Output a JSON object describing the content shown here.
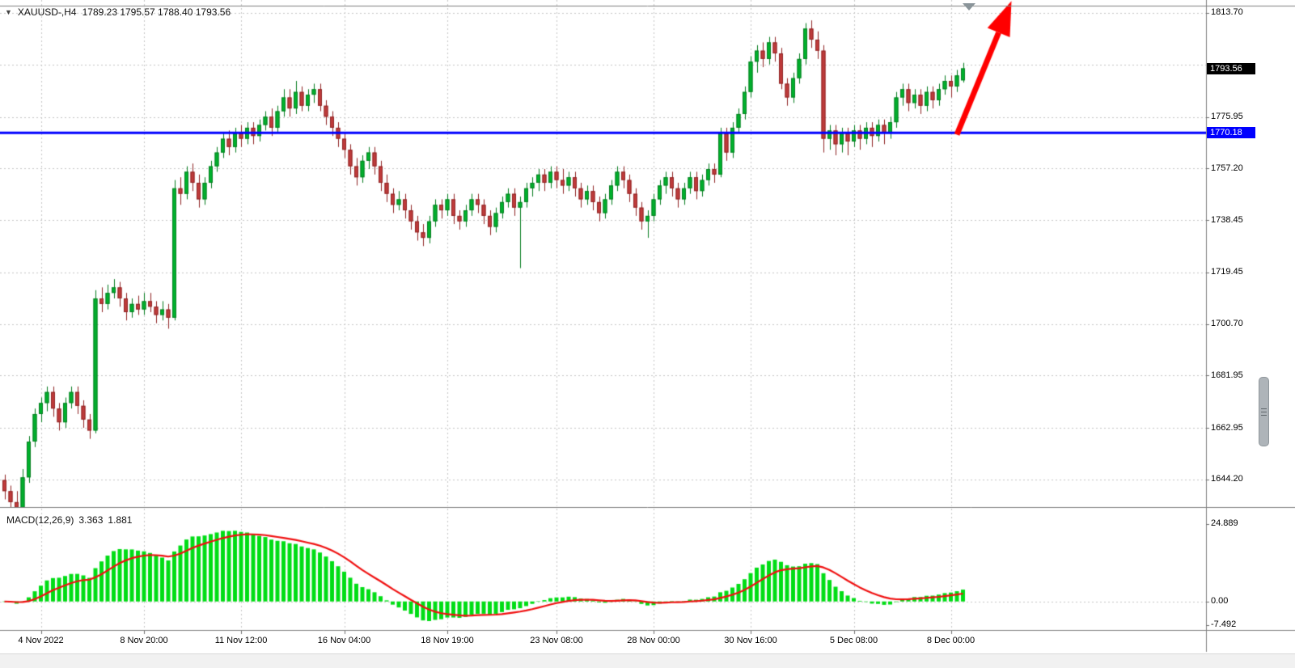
{
  "header": {
    "dropdown_icon": "▼",
    "symbol": "XAUUSD-,H4",
    "ohlc": "1789.23 1795.57 1788.40 1793.56"
  },
  "colors": {
    "background": "#ffffff",
    "grid": "#c6c6c6",
    "up": "#00b22d",
    "up_edge": "#067d20",
    "down": "#bf3b3b",
    "down_edge": "#8f2424",
    "hline": "#0000ff",
    "badge_black_bg": "#000000",
    "badge_blue_bg": "#0000ff",
    "arrow": "#ff0000",
    "macd_bar": "#00dd15",
    "macd_signal": "#f01010",
    "separator": "#808080"
  },
  "chart_data": {
    "type": "candlestick",
    "symbol": "XAUUSD-",
    "timeframe": "H4",
    "title": "XAUUSD-,H4 1789.23 1795.57 1788.40 1793.56",
    "quote": {
      "open": 1789.23,
      "high": 1795.57,
      "low": 1788.4,
      "close": 1793.56
    },
    "y_axis": {
      "min": 1634.5,
      "max": 1818.4,
      "ticks": [
        {
          "text": "1813.70",
          "value": 1813.7
        },
        {
          "text": "1775.95",
          "value": 1775.95
        },
        {
          "text": "1757.20",
          "value": 1757.2
        },
        {
          "text": "1738.45",
          "value": 1738.45
        },
        {
          "text": "1719.45",
          "value": 1719.45
        },
        {
          "text": "1700.70",
          "value": 1700.7
        },
        {
          "text": "1681.95",
          "value": 1681.95
        },
        {
          "text": "1662.95",
          "value": 1662.95
        },
        {
          "text": "1644.20",
          "value": 1644.2
        }
      ],
      "hidden_gridlines": [
        1794.95
      ]
    },
    "x_axis": {
      "ticks": [
        {
          "text": "4 Nov 2022",
          "index": 6
        },
        {
          "text": "8 Nov 20:00",
          "index": 23
        },
        {
          "text": "11 Nov 12:00",
          "index": 39
        },
        {
          "text": "16 Nov 04:00",
          "index": 56
        },
        {
          "text": "18 Nov 19:00",
          "index": 73
        },
        {
          "text": "23 Nov 08:00",
          "index": 91
        },
        {
          "text": "28 Nov 00:00",
          "index": 107
        },
        {
          "text": "30 Nov 16:00",
          "index": 123
        },
        {
          "text": "5 Dec 08:00",
          "index": 140
        },
        {
          "text": "8 Dec 00:00",
          "index": 156
        }
      ]
    },
    "candles": [
      [
        1644,
        1646,
        1637,
        1640
      ],
      [
        1640,
        1642,
        1633,
        1636
      ],
      [
        1636,
        1640,
        1632,
        1634
      ],
      [
        1634,
        1648,
        1633,
        1645
      ],
      [
        1645,
        1660,
        1643,
        1658
      ],
      [
        1658,
        1670,
        1656,
        1668
      ],
      [
        1668,
        1674,
        1665,
        1672
      ],
      [
        1672,
        1678,
        1669,
        1676
      ],
      [
        1676,
        1678,
        1667,
        1670
      ],
      [
        1670,
        1672,
        1662,
        1665
      ],
      [
        1665,
        1674,
        1663,
        1672
      ],
      [
        1672,
        1678,
        1670,
        1676
      ],
      [
        1676,
        1678,
        1668,
        1671
      ],
      [
        1671,
        1673,
        1663,
        1666
      ],
      [
        1666,
        1668,
        1659,
        1662
      ],
      [
        1662,
        1713,
        1661,
        1710
      ],
      [
        1710,
        1714,
        1705,
        1708
      ],
      [
        1708,
        1715,
        1706,
        1712
      ],
      [
        1712,
        1717,
        1710,
        1714
      ],
      [
        1714,
        1716,
        1707,
        1710
      ],
      [
        1710,
        1712,
        1702,
        1705
      ],
      [
        1705,
        1710,
        1703,
        1708
      ],
      [
        1708,
        1711,
        1704,
        1706
      ],
      [
        1706,
        1712,
        1704,
        1709
      ],
      [
        1709,
        1712,
        1705,
        1707
      ],
      [
        1707,
        1709,
        1701,
        1704
      ],
      [
        1704,
        1709,
        1702,
        1706
      ],
      [
        1706,
        1708,
        1699,
        1703
      ],
      [
        1703,
        1753,
        1702,
        1750
      ],
      [
        1750,
        1754,
        1744,
        1748
      ],
      [
        1748,
        1758,
        1746,
        1756
      ],
      [
        1756,
        1759,
        1749,
        1752
      ],
      [
        1752,
        1755,
        1743,
        1746
      ],
      [
        1746,
        1754,
        1744,
        1752
      ],
      [
        1752,
        1760,
        1750,
        1758
      ],
      [
        1758,
        1765,
        1756,
        1763
      ],
      [
        1763,
        1770,
        1761,
        1768
      ],
      [
        1768,
        1771,
        1762,
        1765
      ],
      [
        1765,
        1772,
        1763,
        1770
      ],
      [
        1770,
        1773,
        1765,
        1768
      ],
      [
        1768,
        1774,
        1766,
        1772
      ],
      [
        1772,
        1774,
        1766,
        1769
      ],
      [
        1769,
        1775,
        1767,
        1773
      ],
      [
        1773,
        1778,
        1771,
        1776
      ],
      [
        1776,
        1779,
        1769,
        1772
      ],
      [
        1772,
        1780,
        1770,
        1778
      ],
      [
        1778,
        1786,
        1776,
        1783
      ],
      [
        1783,
        1786,
        1776,
        1779
      ],
      [
        1779,
        1789,
        1777,
        1785
      ],
      [
        1785,
        1787,
        1778,
        1780
      ],
      [
        1780,
        1786,
        1778,
        1784
      ],
      [
        1784,
        1788,
        1781,
        1786
      ],
      [
        1786,
        1788,
        1778,
        1780
      ],
      [
        1780,
        1782,
        1773,
        1776
      ],
      [
        1776,
        1778,
        1769,
        1772
      ],
      [
        1772,
        1774,
        1765,
        1768
      ],
      [
        1768,
        1770,
        1761,
        1764
      ],
      [
        1764,
        1766,
        1755,
        1758
      ],
      [
        1758,
        1761,
        1751,
        1754
      ],
      [
        1754,
        1762,
        1752,
        1760
      ],
      [
        1760,
        1765,
        1757,
        1763
      ],
      [
        1763,
        1765,
        1755,
        1758
      ],
      [
        1758,
        1760,
        1749,
        1752
      ],
      [
        1752,
        1755,
        1745,
        1748
      ],
      [
        1748,
        1750,
        1741,
        1744
      ],
      [
        1744,
        1749,
        1742,
        1746
      ],
      [
        1746,
        1748,
        1739,
        1742
      ],
      [
        1742,
        1744,
        1735,
        1738
      ],
      [
        1738,
        1740,
        1731,
        1734
      ],
      [
        1734,
        1737,
        1729,
        1732
      ],
      [
        1732,
        1740,
        1730,
        1738
      ],
      [
        1738,
        1746,
        1736,
        1744
      ],
      [
        1744,
        1746,
        1739,
        1742
      ],
      [
        1742,
        1748,
        1740,
        1746
      ],
      [
        1746,
        1748,
        1737,
        1740
      ],
      [
        1740,
        1742,
        1735,
        1738
      ],
      [
        1738,
        1744,
        1736,
        1742
      ],
      [
        1742,
        1748,
        1740,
        1746
      ],
      [
        1746,
        1748,
        1741,
        1744
      ],
      [
        1744,
        1746,
        1737,
        1740
      ],
      [
        1740,
        1742,
        1733,
        1736
      ],
      [
        1736,
        1743,
        1734,
        1741
      ],
      [
        1741,
        1747,
        1739,
        1745
      ],
      [
        1745,
        1750,
        1743,
        1748
      ],
      [
        1748,
        1750,
        1740,
        1743
      ],
      [
        1743,
        1747,
        1721,
        1745
      ],
      [
        1745,
        1752,
        1743,
        1750
      ],
      [
        1750,
        1754,
        1747,
        1752
      ],
      [
        1752,
        1757,
        1749,
        1755
      ],
      [
        1755,
        1757,
        1749,
        1752
      ],
      [
        1752,
        1758,
        1750,
        1756
      ],
      [
        1756,
        1758,
        1750,
        1753
      ],
      [
        1753,
        1757,
        1748,
        1751
      ],
      [
        1751,
        1756,
        1749,
        1754
      ],
      [
        1754,
        1756,
        1747,
        1750
      ],
      [
        1750,
        1752,
        1743,
        1746
      ],
      [
        1746,
        1751,
        1744,
        1749
      ],
      [
        1749,
        1751,
        1742,
        1745
      ],
      [
        1745,
        1747,
        1738,
        1741
      ],
      [
        1741,
        1748,
        1739,
        1746
      ],
      [
        1746,
        1753,
        1744,
        1751
      ],
      [
        1751,
        1758,
        1749,
        1756
      ],
      [
        1756,
        1758,
        1750,
        1753
      ],
      [
        1753,
        1755,
        1745,
        1748
      ],
      [
        1748,
        1750,
        1740,
        1743
      ],
      [
        1743,
        1745,
        1735,
        1738
      ],
      [
        1738,
        1742,
        1732,
        1740
      ],
      [
        1740,
        1748,
        1738,
        1746
      ],
      [
        1746,
        1753,
        1744,
        1751
      ],
      [
        1751,
        1756,
        1748,
        1754
      ],
      [
        1754,
        1756,
        1747,
        1750
      ],
      [
        1750,
        1752,
        1743,
        1746
      ],
      [
        1746,
        1752,
        1744,
        1750
      ],
      [
        1750,
        1756,
        1748,
        1754
      ],
      [
        1754,
        1756,
        1746,
        1749
      ],
      [
        1749,
        1755,
        1747,
        1753
      ],
      [
        1753,
        1759,
        1751,
        1757
      ],
      [
        1757,
        1759,
        1752,
        1755
      ],
      [
        1755,
        1772,
        1754,
        1770
      ],
      [
        1770,
        1772,
        1760,
        1763
      ],
      [
        1763,
        1774,
        1761,
        1772
      ],
      [
        1772,
        1779,
        1770,
        1777
      ],
      [
        1777,
        1787,
        1775,
        1785
      ],
      [
        1785,
        1798,
        1783,
        1796
      ],
      [
        1796,
        1802,
        1792,
        1800
      ],
      [
        1800,
        1803,
        1794,
        1797
      ],
      [
        1797,
        1805,
        1795,
        1803
      ],
      [
        1803,
        1805,
        1796,
        1799
      ],
      [
        1799,
        1801,
        1786,
        1788
      ],
      [
        1788,
        1790,
        1780,
        1783
      ],
      [
        1783,
        1792,
        1781,
        1790
      ],
      [
        1790,
        1799,
        1788,
        1797
      ],
      [
        1797,
        1810,
        1795,
        1808
      ],
      [
        1808,
        1811,
        1801,
        1804
      ],
      [
        1804,
        1807,
        1797,
        1800
      ],
      [
        1800,
        1802,
        1763,
        1768
      ],
      [
        1768,
        1773,
        1764,
        1771
      ],
      [
        1771,
        1773,
        1762,
        1766
      ],
      [
        1766,
        1772,
        1763,
        1770
      ],
      [
        1770,
        1772,
        1762,
        1767
      ],
      [
        1767,
        1773,
        1765,
        1771
      ],
      [
        1771,
        1773,
        1764,
        1768
      ],
      [
        1768,
        1774,
        1766,
        1772
      ],
      [
        1772,
        1774,
        1765,
        1769
      ],
      [
        1769,
        1775,
        1767,
        1773
      ],
      [
        1773,
        1775,
        1766,
        1770
      ],
      [
        1770,
        1776,
        1768,
        1774
      ],
      [
        1774,
        1785,
        1772,
        1783
      ],
      [
        1783,
        1788,
        1780,
        1786
      ],
      [
        1786,
        1788,
        1778,
        1781
      ],
      [
        1781,
        1786,
        1779,
        1784
      ],
      [
        1784,
        1786,
        1777,
        1780
      ],
      [
        1780,
        1787,
        1778,
        1785
      ],
      [
        1785,
        1787,
        1779,
        1782
      ],
      [
        1782,
        1788,
        1780,
        1786
      ],
      [
        1786,
        1791,
        1784,
        1789
      ],
      [
        1789,
        1791,
        1783,
        1787
      ],
      [
        1787,
        1793,
        1785,
        1791
      ],
      [
        1789.23,
        1795.57,
        1788.4,
        1793.56
      ]
    ],
    "hline": {
      "value": 1770.18,
      "label": "1770.18",
      "color": "#0000ff"
    },
    "price_badge": {
      "value": 1793.56,
      "label": "1793.56"
    },
    "trend_arrow": {
      "start_index": 157,
      "start_price": 1769.5,
      "end_index": 166,
      "end_price": 1818.0,
      "color": "#ff0000"
    },
    "macd": {
      "name": "MACD(12,26,9)",
      "value_main": "3.363",
      "value_signal": "1.881",
      "params": {
        "fast": 12,
        "slow": 26,
        "signal": 9
      },
      "axis": {
        "min": -8.9,
        "max": 29.8,
        "ticks": [
          {
            "text": "24.889",
            "value": 24.889
          },
          {
            "text": "0.00",
            "value": 0
          },
          {
            "text": "-7.492",
            "value": -7.492
          }
        ]
      }
    }
  }
}
